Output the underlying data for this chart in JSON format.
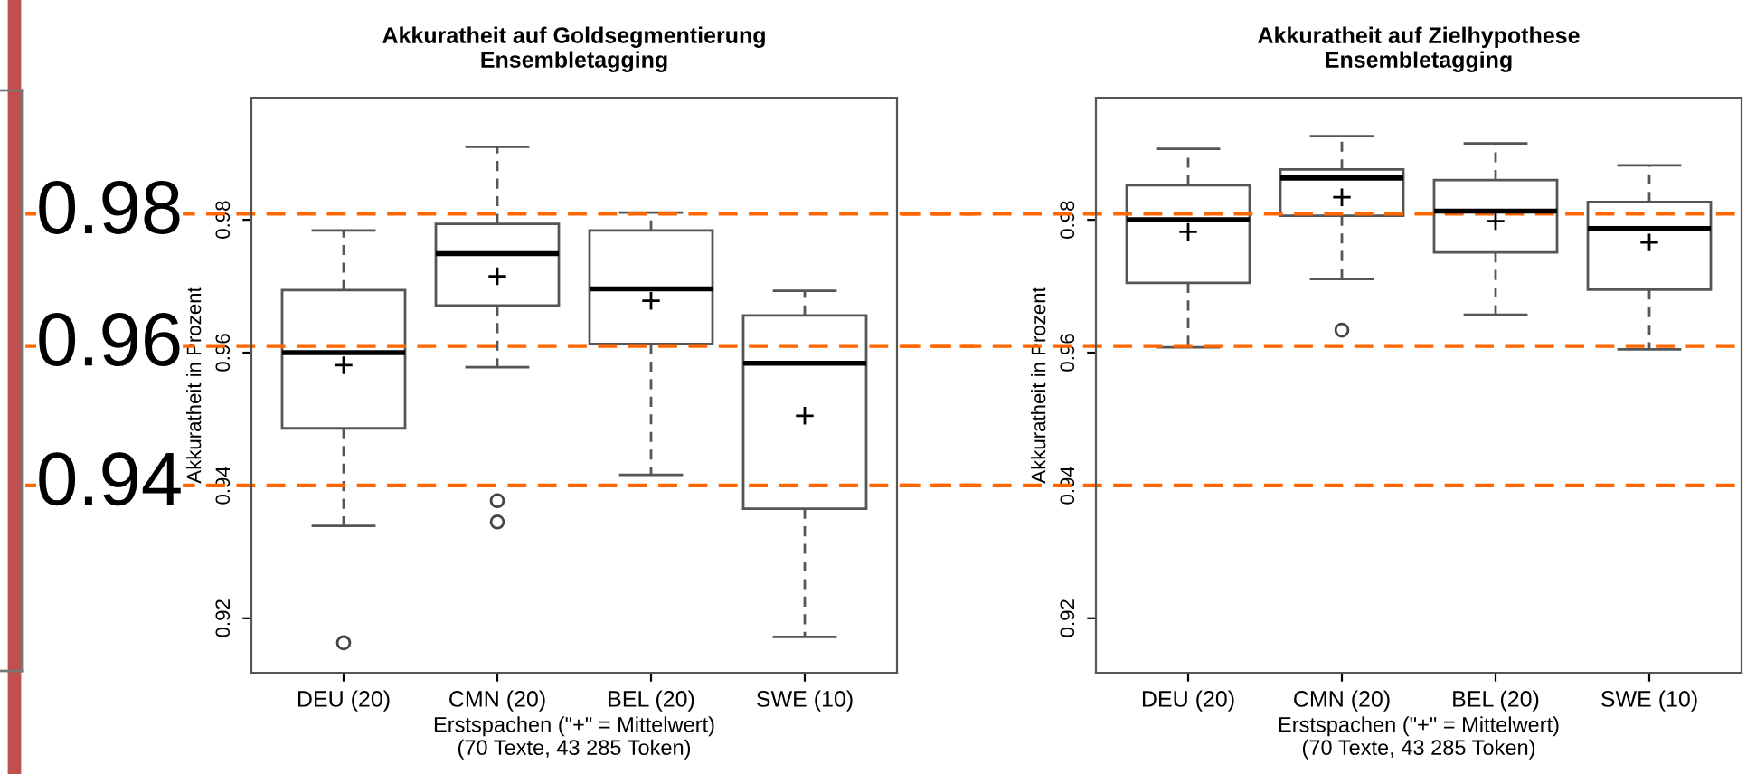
{
  "chart_data": [
    {
      "type": "box",
      "title": "Akkuratheit auf Goldsegmentierung\nEnsembletagging",
      "xlabel": "Erstspachen (\"+\" = Mittelwert)\n(70 Texte, 43 285 Token)",
      "ylabel": "Akkuratheit in Prozent",
      "categories": [
        "DEU (20)",
        "CMN (20)",
        "BEL (20)",
        "SWE (10)"
      ],
      "boxes": [
        {
          "low": 0.9339,
          "q1": 0.9486,
          "median": 0.96,
          "q3": 0.9694,
          "high": 0.9784,
          "mean": 0.9581,
          "outliers": [
            0.9163
          ]
        },
        {
          "low": 0.9578,
          "q1": 0.9671,
          "median": 0.9749,
          "q3": 0.9794,
          "high": 0.991,
          "mean": 0.9715,
          "outliers": [
            0.9377,
            0.9345
          ]
        },
        {
          "low": 0.9416,
          "q1": 0.9613,
          "median": 0.9696,
          "q3": 0.9784,
          "high": 0.9811,
          "mean": 0.9678
        },
        {
          "low": 0.9172,
          "q1": 0.9365,
          "median": 0.9584,
          "q3": 0.9656,
          "high": 0.9693,
          "mean": 0.9505
        }
      ],
      "ylim": [
        0.9118,
        0.9984
      ],
      "yticks": [
        0.92,
        0.94,
        0.96,
        0.98
      ],
      "ref_lines": [
        {
          "axis": "y",
          "value": 0.9809,
          "label": "0.98",
          "color": "#ff6600",
          "line_style": "dashed"
        },
        {
          "axis": "y",
          "value": 0.961,
          "label": "0.96",
          "color": "#ff6600",
          "line_style": "dashed"
        },
        {
          "axis": "y",
          "value": 0.94,
          "label": "0.94",
          "color": "#ff6600",
          "line_style": "dashed"
        }
      ]
    },
    {
      "type": "box",
      "title": "Akkuratheit auf Zielhypothese\nEnsembletagging",
      "xlabel": "Erstspachen (\"+\" = Mittelwert)\n(70 Texte, 43 285 Token)",
      "ylabel": "Akkuratheit in Prozent",
      "categories": [
        "DEU (20)",
        "CMN (20)",
        "BEL (20)",
        "SWE (10)"
      ],
      "boxes": [
        {
          "low": 0.9608,
          "q1": 0.9705,
          "median": 0.98,
          "q3": 0.9852,
          "high": 0.9907,
          "mean": 0.9782
        },
        {
          "low": 0.9711,
          "q1": 0.9806,
          "median": 0.9863,
          "q3": 0.9876,
          "high": 0.9926,
          "mean": 0.9834,
          "outliers": [
            0.9634
          ]
        },
        {
          "low": 0.9657,
          "q1": 0.9751,
          "median": 0.9813,
          "q3": 0.986,
          "high": 0.9915,
          "mean": 0.9798
        },
        {
          "low": 0.9605,
          "q1": 0.9695,
          "median": 0.9787,
          "q3": 0.9827,
          "high": 0.9882,
          "mean": 0.9766
        }
      ],
      "ylim": [
        0.9118,
        0.9984
      ],
      "yticks": [
        0.92,
        0.94,
        0.96,
        0.98
      ],
      "ref_lines": [
        {
          "axis": "y",
          "value": 0.9809,
          "color": "#ff6600",
          "line_style": "dashed"
        },
        {
          "axis": "y",
          "value": 0.961,
          "color": "#ff6600",
          "line_style": "dashed"
        },
        {
          "axis": "y",
          "value": 0.94,
          "color": "#ff6600",
          "line_style": "dashed"
        }
      ]
    }
  ]
}
